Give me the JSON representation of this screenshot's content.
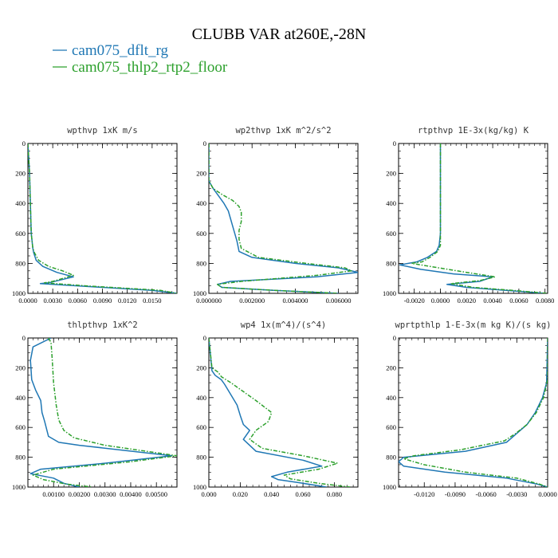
{
  "figure": {
    "title": "CLUBB VAR at260E,-28N",
    "colors": {
      "series1": "#1f77b4",
      "series2": "#2ca02c"
    }
  },
  "chart_data": [
    {
      "type": "line",
      "title": "wpthvp   1xK m/s",
      "xlim": [
        0.0,
        0.018
      ],
      "ylim": [
        1000,
        0
      ],
      "xticks": [
        "0.0000",
        "0.0030",
        "0.0060",
        "0.0090",
        "0.0120",
        "0.0150"
      ],
      "xtick_values": [
        0.0,
        0.003,
        0.006,
        0.009,
        0.012,
        0.015
      ],
      "yticks": [
        "0",
        "200",
        "400",
        "600",
        "800",
        "1000"
      ],
      "ytick_values": [
        0,
        200,
        400,
        600,
        800,
        1000
      ],
      "series": [
        {
          "name": "cam075_dflt_rg",
          "color": "#1f77b4",
          "dashed": false,
          "x": [
            0.0,
            0.0002,
            0.0003,
            0.0004,
            0.0005,
            0.0006,
            0.0007,
            0.001,
            0.0018,
            0.0035,
            0.0055,
            0.0025,
            0.0015,
            0.006,
            0.015,
            0.018
          ],
          "y": [
            0,
            200,
            400,
            600,
            650,
            700,
            730,
            780,
            820,
            860,
            890,
            930,
            935,
            950,
            980,
            1000
          ]
        },
        {
          "name": "cam075_thlp2_rtp2_floor",
          "color": "#2ca02c",
          "dashed": true,
          "x": [
            0.0,
            0.0002,
            0.0003,
            0.0004,
            0.0005,
            0.0006,
            0.0008,
            0.0013,
            0.0025,
            0.0042,
            0.0055,
            0.003,
            0.002,
            0.007,
            0.016,
            0.018
          ],
          "y": [
            0,
            200,
            400,
            600,
            650,
            700,
            730,
            780,
            820,
            850,
            880,
            920,
            930,
            950,
            980,
            1000
          ]
        }
      ]
    },
    {
      "type": "line",
      "title": "wp2thvp   1xK m^2/s^2",
      "xlim": [
        0.0,
        0.0069
      ],
      "ylim": [
        1000,
        0
      ],
      "xticks": [
        "0.000000",
        "0.002000",
        "0.004000",
        "0.006000"
      ],
      "xtick_values": [
        0.0,
        0.002,
        0.004,
        0.006
      ],
      "yticks": [
        "0",
        "200",
        "400",
        "600",
        "800",
        "1000"
      ],
      "ytick_values": [
        0,
        200,
        400,
        600,
        800,
        1000
      ],
      "series": [
        {
          "name": "cam075_dflt_rg",
          "color": "#1f77b4",
          "dashed": false,
          "x": [
            0.0,
            0.0,
            0.0002,
            0.0005,
            0.0007,
            0.0009,
            0.001,
            0.0011,
            0.0012,
            0.0013,
            0.0014,
            0.002,
            0.004,
            0.006,
            0.0069,
            0.005,
            0.001,
            0.0004,
            0.0006,
            0.003,
            0.006
          ],
          "y": [
            0,
            250,
            300,
            360,
            400,
            450,
            500,
            550,
            600,
            650,
            720,
            760,
            800,
            830,
            860,
            890,
            920,
            940,
            960,
            980,
            1000
          ]
        },
        {
          "name": "cam075_thlp2_rtp2_floor",
          "color": "#2ca02c",
          "dashed": true,
          "x": [
            0.0,
            0.0,
            0.0002,
            0.0006,
            0.0011,
            0.0014,
            0.0015,
            0.0015,
            0.0014,
            0.0014,
            0.0015,
            0.0023,
            0.0045,
            0.0063,
            0.0066,
            0.005,
            0.0015,
            0.0004,
            0.0006,
            0.003,
            0.006
          ],
          "y": [
            0,
            250,
            300,
            340,
            380,
            420,
            460,
            520,
            580,
            640,
            700,
            760,
            800,
            830,
            850,
            880,
            920,
            940,
            960,
            980,
            1000
          ]
        }
      ]
    },
    {
      "type": "line",
      "title": "rtpthvp   1E-3x(kg/kg) K",
      "xlim": [
        -0.0032,
        0.0082
      ],
      "ylim": [
        1000,
        0
      ],
      "xticks": [
        "-0.0020",
        "0.0000",
        "0.0020",
        "0.0040",
        "0.0060",
        "0.0080"
      ],
      "xtick_values": [
        -0.002,
        0.0,
        0.002,
        0.004,
        0.006,
        0.008
      ],
      "yticks": [
        "0",
        "200",
        "400",
        "600",
        "800",
        "1000"
      ],
      "ytick_values": [
        0,
        200,
        400,
        600,
        800,
        1000
      ],
      "series": [
        {
          "name": "cam075_dflt_rg",
          "color": "#1f77b4",
          "dashed": false,
          "x": [
            0.0,
            0.0,
            0.0,
            -0.0001,
            -0.0003,
            -0.001,
            -0.0018,
            -0.0031,
            -0.0015,
            0.001,
            0.004,
            0.003,
            0.0005,
            0.002,
            0.005,
            0.008
          ],
          "y": [
            0,
            300,
            600,
            680,
            720,
            760,
            790,
            810,
            840,
            870,
            890,
            920,
            940,
            960,
            980,
            1000
          ]
        },
        {
          "name": "cam075_thlp2_rtp2_floor",
          "color": "#2ca02c",
          "dashed": true,
          "x": [
            0.0,
            0.0,
            0.0,
            0.0,
            -0.0002,
            -0.0008,
            -0.0014,
            -0.0022,
            -0.0008,
            0.002,
            0.0042,
            0.003,
            0.0008,
            0.0025,
            0.0055,
            0.0082
          ],
          "y": [
            0,
            300,
            600,
            680,
            720,
            760,
            790,
            800,
            820,
            860,
            890,
            915,
            935,
            960,
            980,
            1000
          ]
        }
      ]
    },
    {
      "type": "line",
      "title": "thlpthvp   1xK^2",
      "xlim": [
        0.0,
        0.0058
      ],
      "ylim": [
        1000,
        0
      ],
      "xticks": [
        "0.00100",
        "0.00200",
        "0.00300",
        "0.00400",
        "0.00500"
      ],
      "xtick_values": [
        0.001,
        0.002,
        0.003,
        0.004,
        0.005
      ],
      "yticks": [
        "0",
        "200",
        "400",
        "600",
        "800",
        "1000"
      ],
      "ytick_values": [
        0,
        200,
        400,
        600,
        800,
        1000
      ],
      "series": [
        {
          "name": "cam075_dflt_rg",
          "color": "#1f77b4",
          "dashed": false,
          "x": [
            0.0009,
            0.0002,
            0.0001,
            0.00015,
            0.0003,
            0.0005,
            0.00055,
            0.00065,
            0.0008,
            0.0012,
            0.002,
            0.0056,
            0.003,
            0.0005,
            0.0001,
            0.001,
            0.0014,
            0.002
          ],
          "y": [
            0,
            60,
            150,
            280,
            350,
            420,
            500,
            560,
            660,
            700,
            720,
            790,
            840,
            880,
            910,
            940,
            975,
            1000
          ]
        },
        {
          "name": "cam075_thlp2_rtp2_floor",
          "color": "#2ca02c",
          "dashed": true,
          "x": [
            0.0008,
            0.0009,
            0.00095,
            0.001,
            0.0011,
            0.0012,
            0.0014,
            0.0018,
            0.003,
            0.0058,
            0.004,
            0.001,
            0.0002,
            0.0006,
            0.0015,
            0.0025
          ],
          "y": [
            0,
            30,
            150,
            300,
            450,
            550,
            620,
            670,
            720,
            790,
            830,
            880,
            920,
            950,
            980,
            1000
          ]
        }
      ]
    },
    {
      "type": "line",
      "title": "wp4   1x(m^4)/(s^4)",
      "xlim": [
        0.0,
        0.095
      ],
      "ylim": [
        1000,
        0
      ],
      "xticks": [
        "0.000",
        "0.020",
        "0.040",
        "0.060",
        "0.080"
      ],
      "xtick_values": [
        0.0,
        0.02,
        0.04,
        0.06,
        0.08
      ],
      "yticks": [
        "0",
        "200",
        "400",
        "600",
        "800",
        "1000"
      ],
      "ytick_values": [
        0,
        200,
        400,
        600,
        800,
        1000
      ],
      "series": [
        {
          "name": "cam075_dflt_rg",
          "color": "#1f77b4",
          "dashed": false,
          "x": [
            0.0,
            0.002,
            0.004,
            0.008,
            0.01,
            0.014,
            0.018,
            0.02,
            0.022,
            0.026,
            0.022,
            0.03,
            0.06,
            0.072,
            0.05,
            0.04,
            0.044,
            0.06,
            0.075
          ],
          "y": [
            0,
            220,
            250,
            280,
            310,
            380,
            450,
            520,
            580,
            620,
            680,
            760,
            820,
            860,
            900,
            930,
            950,
            975,
            1000
          ]
        },
        {
          "name": "cam075_thlp2_rtp2_floor",
          "color": "#2ca02c",
          "dashed": true,
          "x": [
            0.0,
            0.002,
            0.006,
            0.008,
            0.014,
            0.03,
            0.04,
            0.038,
            0.03,
            0.026,
            0.034,
            0.06,
            0.082,
            0.07,
            0.048,
            0.052,
            0.07,
            0.09
          ],
          "y": [
            0,
            200,
            230,
            260,
            300,
            420,
            500,
            560,
            620,
            680,
            740,
            790,
            840,
            880,
            920,
            945,
            975,
            1000
          ]
        }
      ]
    },
    {
      "type": "line",
      "title": "wprtpthlp   1-E-3x(m kg K)/(s kg)",
      "xlim": [
        -0.0145,
        0.0
      ],
      "ylim": [
        1000,
        0
      ],
      "xticks": [
        "-0.0120",
        "-0.0090",
        "-0.0060",
        "-0.0030",
        "0.0000"
      ],
      "xtick_values": [
        -0.012,
        -0.009,
        -0.006,
        -0.003,
        0.0
      ],
      "yticks": [
        "0",
        "200",
        "400",
        "600",
        "800",
        "1000"
      ],
      "ytick_values": [
        0,
        200,
        400,
        600,
        800,
        1000
      ],
      "series": [
        {
          "name": "cam075_dflt_rg",
          "color": "#1f77b4",
          "dashed": false,
          "x": [
            0.0,
            -0.0001,
            -0.0005,
            -0.0012,
            -0.002,
            -0.003,
            -0.004,
            -0.008,
            -0.014,
            -0.0145,
            -0.014,
            -0.01,
            -0.004,
            -0.001,
            0.0
          ],
          "y": [
            0,
            300,
            400,
            500,
            580,
            640,
            700,
            760,
            800,
            830,
            860,
            900,
            940,
            980,
            1000
          ]
        },
        {
          "name": "cam075_thlp2_rtp2_floor",
          "color": "#2ca02c",
          "dashed": true,
          "x": [
            0.0,
            0.0,
            -0.0004,
            -0.0011,
            -0.002,
            -0.0031,
            -0.0042,
            -0.0085,
            -0.013,
            -0.014,
            -0.012,
            -0.008,
            -0.003,
            -0.0008,
            0.0
          ],
          "y": [
            0,
            280,
            400,
            500,
            580,
            640,
            690,
            750,
            790,
            810,
            850,
            900,
            940,
            980,
            1000
          ]
        }
      ]
    }
  ]
}
